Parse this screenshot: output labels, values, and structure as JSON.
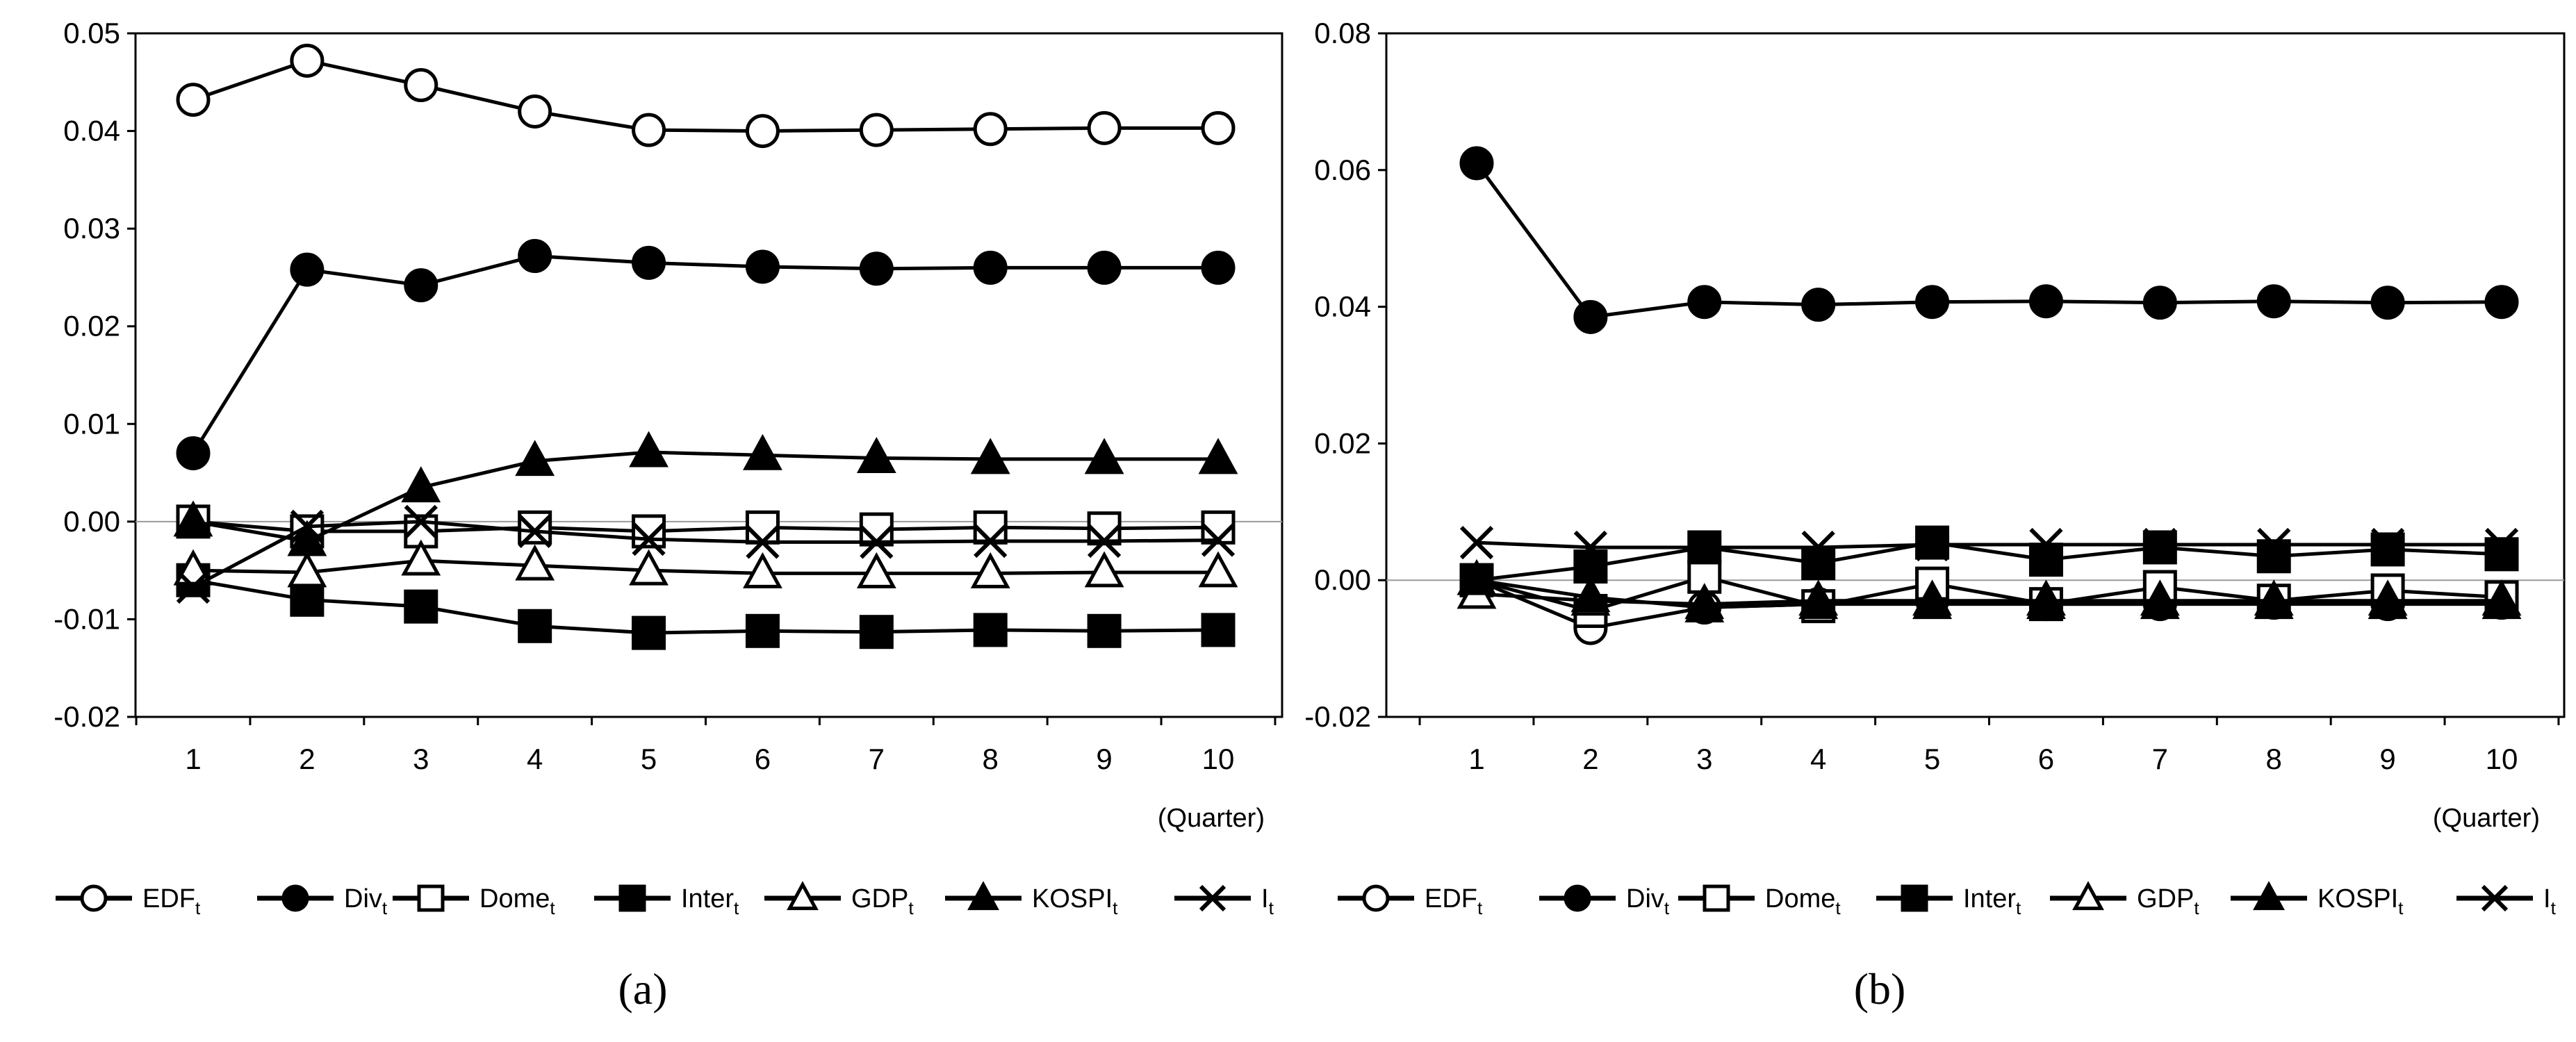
{
  "chart_data": [
    {
      "type": "line",
      "caption": "(a)",
      "xlabel": "(Quarter)",
      "ylabel": "",
      "x": [
        1,
        2,
        3,
        4,
        5,
        6,
        7,
        8,
        9,
        10
      ],
      "x_tick_labels": [
        "1",
        "2",
        "3",
        "4",
        "5",
        "6",
        "7",
        "8",
        "9",
        "10"
      ],
      "ylim": [
        -0.02,
        0.05
      ],
      "y_ticks": [
        -0.02,
        -0.01,
        0.0,
        0.01,
        0.02,
        0.03,
        0.04,
        0.05
      ],
      "y_tick_labels": [
        "-0.02",
        "-0.01",
        "0.00",
        "0.01",
        "0.02",
        "0.03",
        "0.04",
        "0.05"
      ],
      "zero_line": true,
      "legend_position": "bottom",
      "series": [
        {
          "name": "EDF",
          "sub": "t",
          "marker": "circle-open",
          "values": [
            0.0432,
            0.0472,
            0.0447,
            0.042,
            0.0401,
            0.04,
            0.0401,
            0.0402,
            0.0403,
            0.0403
          ]
        },
        {
          "name": "Div",
          "sub": "t",
          "marker": "circle-filled",
          "values": [
            0.007,
            0.0258,
            0.0242,
            0.0272,
            0.0265,
            0.0261,
            0.0259,
            0.026,
            0.026,
            0.026
          ]
        },
        {
          "name": "Dome",
          "sub": "t",
          "marker": "square-open",
          "values": [
            0.0,
            -0.001,
            -0.001,
            -0.0006,
            -0.001,
            -0.0006,
            -0.0008,
            -0.0006,
            -0.0007,
            -0.0006
          ]
        },
        {
          "name": "Inter",
          "sub": "t",
          "marker": "square-filled",
          "values": [
            -0.006,
            -0.008,
            -0.0087,
            -0.0107,
            -0.0114,
            -0.0112,
            -0.0113,
            -0.0111,
            -0.0112,
            -0.0111
          ]
        },
        {
          "name": "GDP",
          "sub": "t",
          "marker": "triangle-open",
          "values": [
            -0.005,
            -0.0052,
            -0.004,
            -0.0045,
            -0.005,
            -0.0053,
            -0.0053,
            -0.0053,
            -0.0052,
            -0.0052
          ]
        },
        {
          "name": "KOSPI",
          "sub": "t",
          "marker": "triangle-filled",
          "values": [
            0.0,
            -0.002,
            0.0035,
            0.0062,
            0.0071,
            0.0068,
            0.0065,
            0.0064,
            0.0064,
            0.0064
          ]
        },
        {
          "name": "I",
          "sub": "t",
          "marker": "cross",
          "values": [
            -0.0067,
            -0.0005,
            0.0,
            -0.001,
            -0.0018,
            -0.0021,
            -0.0021,
            -0.002,
            -0.002,
            -0.0019
          ]
        }
      ]
    },
    {
      "type": "line",
      "caption": "(b)",
      "xlabel": "(Quarter)",
      "ylabel": "",
      "x": [
        1,
        2,
        3,
        4,
        5,
        6,
        7,
        8,
        9,
        10
      ],
      "x_tick_labels": [
        "1",
        "2",
        "3",
        "4",
        "5",
        "6",
        "7",
        "8",
        "9",
        "10"
      ],
      "ylim": [
        -0.02,
        0.08
      ],
      "y_ticks": [
        -0.02,
        0.0,
        0.02,
        0.04,
        0.06,
        0.08
      ],
      "y_tick_labels": [
        "-0.02",
        "0.00",
        "0.02",
        "0.04",
        "0.06",
        "0.08"
      ],
      "zero_line": true,
      "legend_position": "bottom",
      "series": [
        {
          "name": "EDF",
          "sub": "t",
          "marker": "circle-open",
          "values": [
            0.0,
            -0.007,
            -0.004,
            -0.0035,
            -0.003,
            -0.0035,
            -0.0035,
            -0.0033,
            -0.0035,
            -0.0033
          ]
        },
        {
          "name": "Div",
          "sub": "t",
          "marker": "circle-filled",
          "values": [
            0.061,
            0.0385,
            0.0407,
            0.0403,
            0.0407,
            0.0408,
            0.0406,
            0.0408,
            0.0406,
            0.0407
          ]
        },
        {
          "name": "Dome",
          "sub": "t",
          "marker": "square-open",
          "values": [
            0.0,
            -0.0045,
            0.0005,
            -0.0038,
            -0.0005,
            -0.0035,
            -0.001,
            -0.003,
            -0.0015,
            -0.0025
          ]
        },
        {
          "name": "Inter",
          "sub": "t",
          "marker": "square-filled",
          "values": [
            0.0,
            0.002,
            0.0048,
            0.0025,
            0.0055,
            0.003,
            0.0048,
            0.0035,
            0.0045,
            0.0038
          ]
        },
        {
          "name": "GDP",
          "sub": "t",
          "marker": "triangle-open",
          "values": [
            -0.002,
            -0.003,
            -0.0035,
            -0.003,
            -0.003,
            -0.003,
            -0.003,
            -0.003,
            -0.003,
            -0.003
          ]
        },
        {
          "name": "KOSPI",
          "sub": "t",
          "marker": "triangle-filled",
          "values": [
            0.0,
            -0.0025,
            -0.004,
            -0.0035,
            -0.0035,
            -0.0035,
            -0.0035,
            -0.0035,
            -0.0035,
            -0.0035
          ]
        },
        {
          "name": "I",
          "sub": "t",
          "marker": "cross",
          "values": [
            0.0055,
            0.0048,
            0.0048,
            0.0048,
            0.0052,
            0.0052,
            0.0052,
            0.0052,
            0.0052,
            0.0052
          ]
        }
      ]
    }
  ]
}
